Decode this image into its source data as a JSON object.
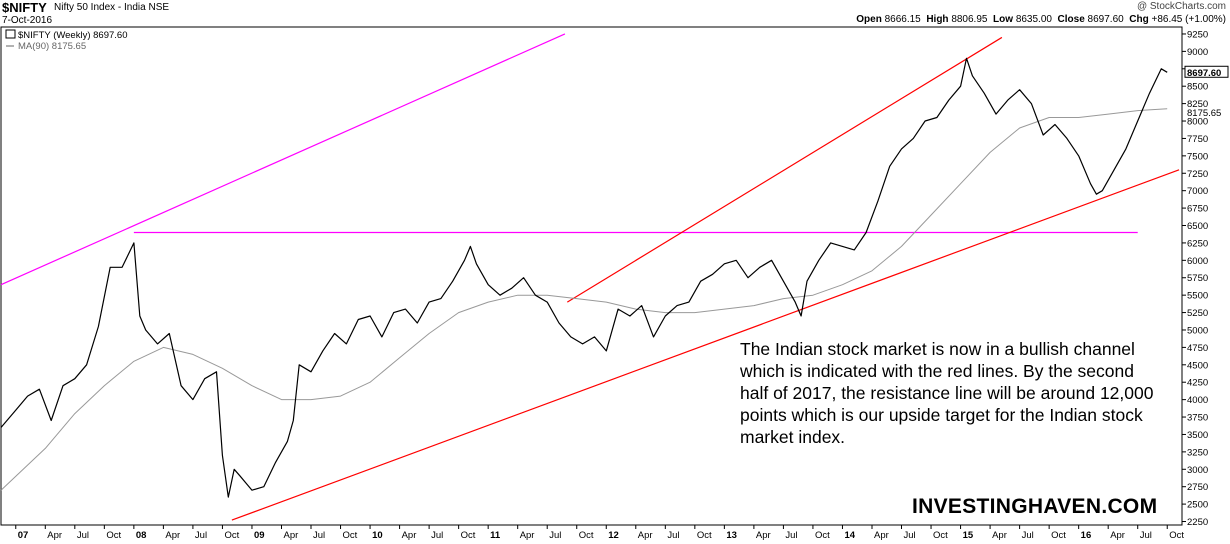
{
  "header": {
    "symbol": "$NIFTY",
    "name": "Nifty 50 Index - India NSE",
    "date": "7-Oct-2016",
    "copyright": "@ StockCharts.com",
    "quote": {
      "open_label": "Open",
      "open": "8666.15",
      "high_label": "High",
      "high": "8806.95",
      "low_label": "Low",
      "low": "8635.00",
      "close_label": "Close",
      "close": "8697.60",
      "chg_label": "Chg",
      "chg": "+86.45 (+1.00%)"
    }
  },
  "legend": {
    "series": "$NIFTY (Weekly) 8697.60",
    "ma": "MA(90) 8175.65"
  },
  "annotation": "The Indian stock market is now in a bullish channel which is indicated with the red lines. By the second half of 2017, the resistance line will be around 12,000 points which is our upside target for the Indian stock market index.",
  "brand": "INVESTINGHAVEN.COM",
  "chart_data": {
    "type": "line",
    "title": "$NIFTY Nifty 50 Index - India NSE",
    "x_unit": "year",
    "xlim": [
      2006.875,
      2016.875
    ],
    "ylim": [
      2200,
      9350
    ],
    "ylabel": "",
    "y_ticks": [
      2250,
      2500,
      2750,
      3000,
      3250,
      3500,
      3750,
      4000,
      4250,
      4500,
      4750,
      5000,
      5250,
      5500,
      5750,
      6000,
      6250,
      6500,
      6750,
      7000,
      7250,
      7500,
      7750,
      8000,
      8250,
      8500,
      8750,
      9000,
      9250
    ],
    "x_ticks": [
      {
        "label": "07",
        "x": 2007.0
      },
      {
        "label": "Apr",
        "x": 2007.25
      },
      {
        "label": "Jul",
        "x": 2007.5
      },
      {
        "label": "Oct",
        "x": 2007.75
      },
      {
        "label": "08",
        "x": 2008.0
      },
      {
        "label": "Apr",
        "x": 2008.25
      },
      {
        "label": "Jul",
        "x": 2008.5
      },
      {
        "label": "Oct",
        "x": 2008.75
      },
      {
        "label": "09",
        "x": 2009.0
      },
      {
        "label": "Apr",
        "x": 2009.25
      },
      {
        "label": "Jul",
        "x": 2009.5
      },
      {
        "label": "Oct",
        "x": 2009.75
      },
      {
        "label": "10",
        "x": 2010.0
      },
      {
        "label": "Apr",
        "x": 2010.25
      },
      {
        "label": "Jul",
        "x": 2010.5
      },
      {
        "label": "Oct",
        "x": 2010.75
      },
      {
        "label": "11",
        "x": 2011.0
      },
      {
        "label": "Apr",
        "x": 2011.25
      },
      {
        "label": "Jul",
        "x": 2011.5
      },
      {
        "label": "Oct",
        "x": 2011.75
      },
      {
        "label": "12",
        "x": 2012.0
      },
      {
        "label": "Apr",
        "x": 2012.25
      },
      {
        "label": "Jul",
        "x": 2012.5
      },
      {
        "label": "Oct",
        "x": 2012.75
      },
      {
        "label": "13",
        "x": 2013.0
      },
      {
        "label": "Apr",
        "x": 2013.25
      },
      {
        "label": "Jul",
        "x": 2013.5
      },
      {
        "label": "Oct",
        "x": 2013.75
      },
      {
        "label": "14",
        "x": 2014.0
      },
      {
        "label": "Apr",
        "x": 2014.25
      },
      {
        "label": "Jul",
        "x": 2014.5
      },
      {
        "label": "Oct",
        "x": 2014.75
      },
      {
        "label": "15",
        "x": 2015.0
      },
      {
        "label": "Apr",
        "x": 2015.25
      },
      {
        "label": "Jul",
        "x": 2015.5
      },
      {
        "label": "Oct",
        "x": 2015.75
      },
      {
        "label": "16",
        "x": 2016.0
      },
      {
        "label": "Apr",
        "x": 2016.25
      },
      {
        "label": "Jul",
        "x": 2016.5
      },
      {
        "label": "Oct",
        "x": 2016.75
      }
    ],
    "grid": false,
    "legend_position": "top-left",
    "last_value_label": "8697.60",
    "ma_value_label": "8175.65",
    "series": [
      {
        "name": "$NIFTY (Weekly)",
        "color": "#000000",
        "x": [
          2006.875,
          2007.0,
          2007.1,
          2007.2,
          2007.3,
          2007.4,
          2007.5,
          2007.6,
          2007.7,
          2007.8,
          2007.9,
          2008.0,
          2008.05,
          2008.1,
          2008.2,
          2008.3,
          2008.4,
          2008.5,
          2008.6,
          2008.7,
          2008.75,
          2008.8,
          2008.85,
          2008.9,
          2008.95,
          2009.0,
          2009.1,
          2009.2,
          2009.3,
          2009.35,
          2009.4,
          2009.5,
          2009.6,
          2009.7,
          2009.8,
          2009.9,
          2010.0,
          2010.1,
          2010.2,
          2010.3,
          2010.4,
          2010.5,
          2010.6,
          2010.7,
          2010.8,
          2010.85,
          2010.9,
          2011.0,
          2011.1,
          2011.2,
          2011.3,
          2011.4,
          2011.5,
          2011.6,
          2011.7,
          2011.8,
          2011.9,
          2012.0,
          2012.1,
          2012.2,
          2012.3,
          2012.4,
          2012.5,
          2012.6,
          2012.7,
          2012.8,
          2012.9,
          2013.0,
          2013.1,
          2013.2,
          2013.3,
          2013.4,
          2013.5,
          2013.6,
          2013.65,
          2013.7,
          2013.8,
          2013.9,
          2014.0,
          2014.1,
          2014.2,
          2014.3,
          2014.4,
          2014.5,
          2014.6,
          2014.7,
          2014.8,
          2014.9,
          2015.0,
          2015.05,
          2015.1,
          2015.2,
          2015.3,
          2015.4,
          2015.5,
          2015.6,
          2015.7,
          2015.8,
          2015.9,
          2016.0,
          2016.1,
          2016.15,
          2016.2,
          2016.3,
          2016.4,
          2016.5,
          2016.6,
          2016.7,
          2016.75
        ],
        "y": [
          3600,
          3850,
          4050,
          4150,
          3700,
          4200,
          4300,
          4500,
          5050,
          5900,
          5900,
          6250,
          5200,
          5000,
          4800,
          4950,
          4200,
          4000,
          4300,
          4400,
          3200,
          2600,
          3000,
          2900,
          2800,
          2700,
          2750,
          3100,
          3400,
          3700,
          4500,
          4400,
          4700,
          4950,
          4800,
          5150,
          5200,
          4900,
          5250,
          5300,
          5100,
          5400,
          5450,
          5700,
          6000,
          6200,
          5950,
          5650,
          5500,
          5600,
          5750,
          5500,
          5400,
          5100,
          4900,
          4800,
          4900,
          4700,
          5300,
          5200,
          5350,
          4900,
          5200,
          5350,
          5400,
          5700,
          5800,
          5950,
          6000,
          5750,
          5900,
          6000,
          5700,
          5400,
          5200,
          5700,
          6000,
          6250,
          6200,
          6150,
          6400,
          6850,
          7350,
          7600,
          7750,
          8000,
          8050,
          8300,
          8500,
          8900,
          8650,
          8400,
          8100,
          8300,
          8450,
          8250,
          7800,
          7950,
          7750,
          7500,
          7100,
          6950,
          7000,
          7300,
          7600,
          8000,
          8400,
          8750,
          8700
        ]
      },
      {
        "name": "MA(90)",
        "color": "#999999",
        "x": [
          2006.875,
          2007.25,
          2007.5,
          2007.75,
          2008.0,
          2008.25,
          2008.5,
          2008.75,
          2009.0,
          2009.25,
          2009.5,
          2009.75,
          2010.0,
          2010.25,
          2010.5,
          2010.75,
          2011.0,
          2011.25,
          2011.5,
          2011.75,
          2012.0,
          2012.25,
          2012.5,
          2012.75,
          2013.0,
          2013.25,
          2013.5,
          2013.75,
          2014.0,
          2014.25,
          2014.5,
          2014.75,
          2015.0,
          2015.25,
          2015.5,
          2015.75,
          2016.0,
          2016.25,
          2016.5,
          2016.75
        ],
        "y": [
          2700,
          3300,
          3800,
          4200,
          4550,
          4750,
          4650,
          4450,
          4200,
          4000,
          4000,
          4050,
          4250,
          4600,
          4950,
          5250,
          5400,
          5500,
          5500,
          5450,
          5400,
          5300,
          5250,
          5250,
          5300,
          5350,
          5450,
          5500,
          5650,
          5850,
          6200,
          6650,
          7100,
          7550,
          7900,
          8050,
          8050,
          8100,
          8150,
          8175
        ]
      }
    ],
    "trendlines": [
      {
        "color": "#ff00ff",
        "x": [
          2006.875,
          2011.65
        ],
        "y": [
          5650,
          9250
        ]
      },
      {
        "color": "#ff00ff",
        "x": [
          2008.0,
          2016.5
        ],
        "y": [
          6400,
          6400
        ]
      },
      {
        "color": "#ff0000",
        "x": [
          2008.83,
          2016.85
        ],
        "y": [
          2270,
          7300
        ]
      },
      {
        "color": "#ff0000",
        "x": [
          2011.67,
          2015.35
        ],
        "y": [
          5400,
          9200
        ]
      }
    ]
  }
}
